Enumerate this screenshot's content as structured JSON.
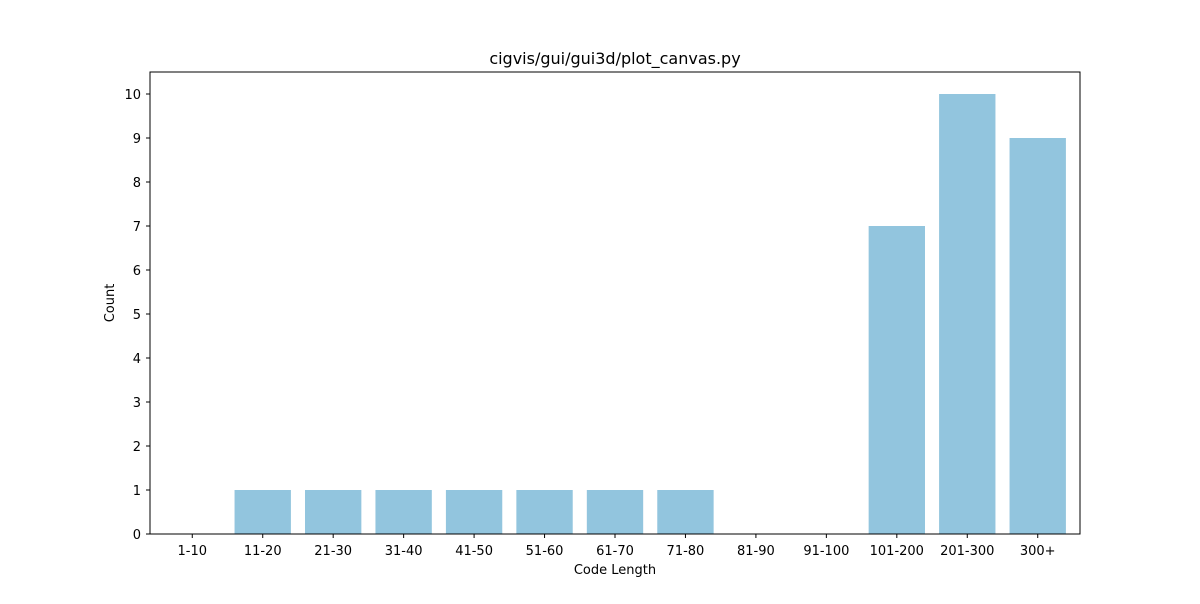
{
  "chart_data": {
    "type": "bar",
    "title": "cigvis/gui/gui3d/plot_canvas.py",
    "xlabel": "Code Length",
    "ylabel": "Count",
    "categories": [
      "1-10",
      "11-20",
      "21-30",
      "31-40",
      "41-50",
      "51-60",
      "61-70",
      "71-80",
      "81-90",
      "91-100",
      "101-200",
      "201-300",
      "300+"
    ],
    "values": [
      0,
      1,
      1,
      1,
      1,
      1,
      1,
      1,
      0,
      0,
      7,
      10,
      9
    ],
    "ylim": [
      0,
      10.5
    ],
    "yticks": [
      0,
      1,
      2,
      3,
      4,
      5,
      6,
      7,
      8,
      9,
      10
    ],
    "bar_color": "#92c5de",
    "grid": false,
    "legend": "none"
  }
}
